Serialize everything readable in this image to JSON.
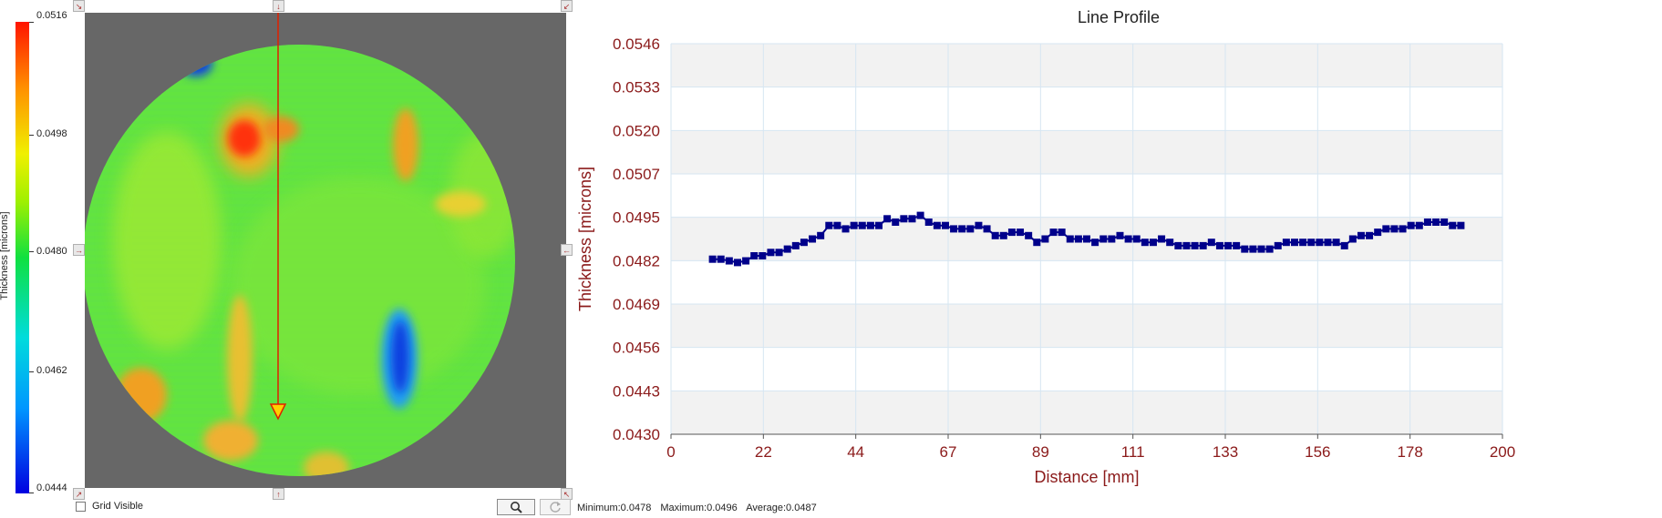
{
  "colorbar": {
    "title": "Thickness [microns]",
    "labels": [
      "0.0516",
      "0.0498",
      "0.0480",
      "0.0462",
      "0.0444"
    ],
    "min": 0.0444,
    "max": 0.0516
  },
  "controls": {
    "grid_label": "Grid Visible",
    "grid_checked": false,
    "zoom_icon": "magnifier-icon",
    "reset_icon": "refresh-icon"
  },
  "stats": {
    "minimum": "Minimum:0.0478",
    "maximum": "Maximum:0.0496",
    "average": "Average:0.0487"
  },
  "colors": {
    "map_background": "#676767",
    "profile_line": "#cc2200",
    "series": "#00008b",
    "axis_text": "#8b1a1a"
  },
  "chart_data": {
    "type": "scatter",
    "title": "Line Profile",
    "xlabel": "Distance [mm]",
    "ylabel": "Thickness [microns]",
    "xlim": [
      0,
      200
    ],
    "ylim": [
      0.043,
      0.0546
    ],
    "x_ticks": [
      "0",
      "22",
      "44",
      "67",
      "89",
      "111",
      "133",
      "156",
      "178",
      "200"
    ],
    "y_ticks": [
      "0.0430",
      "0.0443",
      "0.0456",
      "0.0469",
      "0.0482",
      "0.0495",
      "0.0507",
      "0.0520",
      "0.0533",
      "0.0546"
    ],
    "grid": true,
    "series": [
      {
        "x": [
          10,
          12,
          14,
          16,
          18,
          20,
          22,
          24,
          26,
          28,
          30,
          32,
          34,
          36,
          38,
          40,
          42,
          44,
          46,
          48,
          50,
          52,
          54,
          56,
          58,
          60,
          62,
          64,
          66,
          68,
          70,
          72,
          74,
          76,
          78,
          80,
          82,
          84,
          86,
          88,
          90,
          92,
          94,
          96,
          98,
          100,
          102,
          104,
          106,
          108,
          110,
          112,
          114,
          116,
          118,
          120,
          122,
          124,
          126,
          128,
          130,
          132,
          134,
          136,
          138,
          140,
          142,
          144,
          146,
          148,
          150,
          152,
          154,
          156,
          158,
          160,
          162,
          164,
          166,
          168,
          170,
          172,
          174,
          176,
          178,
          180,
          182,
          184,
          186,
          188,
          190
        ],
        "y": [
          0.0482,
          0.0482,
          0.04815,
          0.0481,
          0.04815,
          0.0483,
          0.0483,
          0.0484,
          0.0484,
          0.0485,
          0.0486,
          0.0487,
          0.0488,
          0.0489,
          0.0492,
          0.0492,
          0.0491,
          0.0492,
          0.0492,
          0.0492,
          0.0492,
          0.0494,
          0.0493,
          0.0494,
          0.0494,
          0.0495,
          0.0493,
          0.0492,
          0.0492,
          0.0491,
          0.0491,
          0.0491,
          0.0492,
          0.0491,
          0.0489,
          0.0489,
          0.049,
          0.049,
          0.0489,
          0.0487,
          0.0488,
          0.049,
          0.049,
          0.0488,
          0.0488,
          0.0488,
          0.0487,
          0.0488,
          0.0488,
          0.0489,
          0.0488,
          0.0488,
          0.0487,
          0.0487,
          0.0488,
          0.0487,
          0.0486,
          0.0486,
          0.0486,
          0.0486,
          0.0487,
          0.0486,
          0.0486,
          0.0486,
          0.0485,
          0.0485,
          0.0485,
          0.0485,
          0.0486,
          0.0487,
          0.0487,
          0.0487,
          0.0487,
          0.0487,
          0.0487,
          0.0487,
          0.0486,
          0.0488,
          0.0489,
          0.0489,
          0.049,
          0.0491,
          0.0491,
          0.0491,
          0.0492,
          0.0492,
          0.0493,
          0.0493,
          0.0493,
          0.0492,
          0.0492
        ]
      }
    ]
  }
}
